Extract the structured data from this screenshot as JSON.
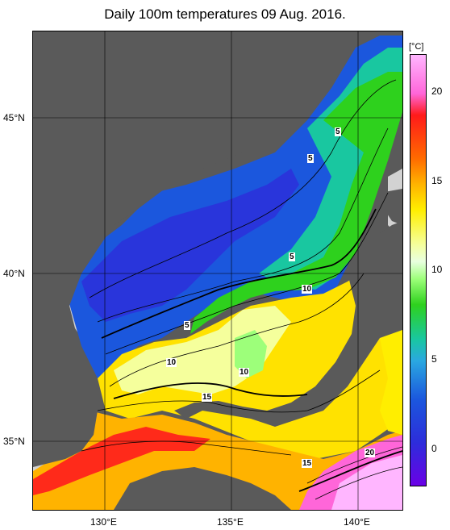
{
  "title": "Daily 100m temperatures 09 Aug. 2016.",
  "colorbar": {
    "unit": "[°C]",
    "ticks": [
      "20",
      "15",
      "10",
      "5",
      "0"
    ]
  },
  "axes": {
    "lat_labels": [
      "45°N",
      "40°N",
      "35°N"
    ],
    "lon_labels": [
      "130°E",
      "135°E",
      "140°E"
    ]
  },
  "contour_labels": [
    "5",
    "5",
    "5",
    "5",
    "10",
    "10",
    "10",
    "15",
    "15",
    "20"
  ],
  "colors": {
    "land": "#5a5a5a",
    "no_data": "#d2d2d2",
    "cold": "#1b57dd",
    "warm": "#ff6a00"
  }
}
